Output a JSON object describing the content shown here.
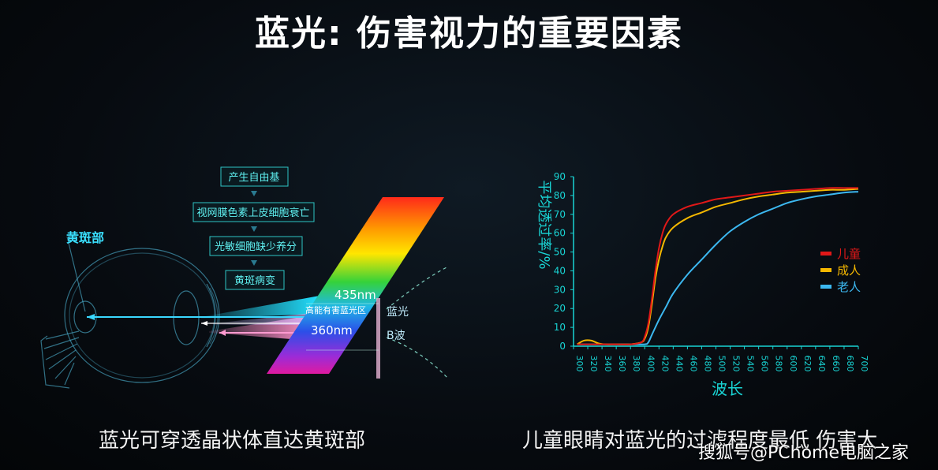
{
  "title": "蓝光: 伤害视力的重要因素",
  "left_panel": {
    "macula_label": "黄斑部",
    "steps": [
      "产生自由基",
      "视网膜色素上皮细胞衰亡",
      "光敏细胞缺少养分",
      "黄斑病变"
    ],
    "label_435": "435nm",
    "label_harm": "高能有害蓝光区",
    "label_360": "360nm",
    "label_blue": "蓝光",
    "label_b": "B波",
    "caption": "蓝光可穿透晶状体直达黄斑部"
  },
  "right_panel": {
    "caption": "儿童眼睛对蓝光的过滤程度最低 伤害大"
  },
  "watermark": "搜狐号@PChome电脑之家",
  "colors": {
    "children": "#e01818",
    "adult": "#f5b800",
    "elderly": "#3cb8f0",
    "axis": "#19d4d4"
  },
  "chart_data": {
    "type": "line",
    "xlabel": "波长",
    "ylabel": "平均透过率/%",
    "xlim": [
      300,
      700
    ],
    "ylim": [
      0,
      90
    ],
    "xticks": [
      300,
      320,
      340,
      360,
      380,
      400,
      420,
      440,
      460,
      480,
      500,
      520,
      540,
      560,
      580,
      600,
      620,
      640,
      660,
      680,
      700
    ],
    "yticks": [
      0,
      10,
      20,
      30,
      40,
      50,
      60,
      70,
      80,
      90
    ],
    "legend_position": "right",
    "grid": false,
    "series": [
      {
        "name": "儿童",
        "color": "#e01818",
        "x": [
          305,
          320,
          340,
          360,
          380,
          395,
          400,
          405,
          410,
          415,
          420,
          425,
          430,
          440,
          460,
          480,
          500,
          520,
          540,
          560,
          580,
          600,
          620,
          640,
          660,
          680,
          700
        ],
        "y": [
          1,
          1,
          1,
          1,
          1,
          2,
          5,
          12,
          25,
          40,
          52,
          60,
          65,
          70,
          74,
          76,
          78,
          79,
          80,
          81,
          82,
          82.5,
          83,
          83.5,
          84,
          84,
          84
        ]
      },
      {
        "name": "成人",
        "color": "#f5b800",
        "x": [
          305,
          315,
          325,
          335,
          345,
          360,
          380,
          395,
          400,
          405,
          410,
          415,
          420,
          425,
          430,
          440,
          460,
          480,
          500,
          520,
          540,
          560,
          580,
          600,
          620,
          640,
          660,
          680,
          700
        ],
        "y": [
          1,
          3,
          3,
          1.5,
          1,
          1,
          1,
          2,
          4,
          10,
          22,
          36,
          46,
          53,
          58,
          63,
          68,
          71,
          74,
          76,
          78,
          79.5,
          80.5,
          81.5,
          82,
          82.5,
          83,
          83,
          83.5
        ]
      },
      {
        "name": "老人",
        "color": "#3cb8f0",
        "x": [
          305,
          340,
          380,
          400,
          405,
          410,
          420,
          430,
          440,
          460,
          480,
          500,
          520,
          540,
          560,
          580,
          600,
          620,
          640,
          660,
          680,
          700
        ],
        "y": [
          1,
          1,
          1,
          1,
          2,
          6,
          14,
          21,
          28,
          38,
          46,
          54,
          61,
          66,
          70,
          73,
          76,
          78,
          79.5,
          80.5,
          81.5,
          82
        ]
      }
    ]
  }
}
